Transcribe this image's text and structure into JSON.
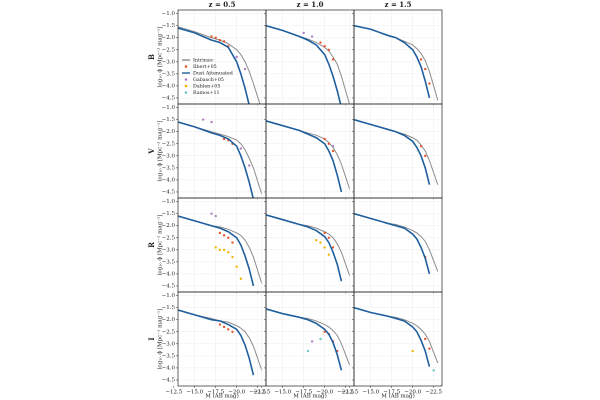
{
  "chart_data": {
    "type": "line",
    "col_titles": [
      "z = 0.5",
      "z = 1.0",
      "z = 1.5"
    ],
    "row_labels": [
      "B",
      "V",
      "R",
      "I"
    ],
    "ylabel": "log₁₀ ϕ [Mpc⁻³ mag⁻¹]",
    "xlabel": "M (AB mag)",
    "xlim": [
      -13,
      -23.5
    ],
    "ylim": [
      -4.75,
      -0.85
    ],
    "xticks": [
      {
        "value": -12.5,
        "label": "−12.5"
      },
      {
        "value": -15,
        "label": "−15.0"
      },
      {
        "value": -17.5,
        "label": "−17.5"
      },
      {
        "value": -20,
        "label": "−20.0"
      },
      {
        "value": -22.5,
        "label": "−22.5"
      }
    ],
    "yticks": [
      {
        "value": -1,
        "label": "−1.0"
      },
      {
        "value": -1.5,
        "label": "−1.5"
      },
      {
        "value": -2,
        "label": "−2.0"
      },
      {
        "value": -2.5,
        "label": "−2.5"
      },
      {
        "value": -3,
        "label": "−3.0"
      },
      {
        "value": -3.5,
        "label": "−3.5"
      },
      {
        "value": -4,
        "label": "−4.0"
      },
      {
        "value": -4.5,
        "label": "−4.5"
      }
    ],
    "grid": true,
    "x": [
      -13,
      -15,
      -17,
      -18,
      -19,
      -20,
      -20.5,
      -21,
      -21.5,
      -22,
      -23
    ],
    "series": [
      {
        "name": "Intrinsic",
        "type": "line",
        "color": "#8c8c8c",
        "panels": [
          [
            -1.55,
            -1.75,
            -2.0,
            -2.1,
            -2.25,
            -2.5,
            -2.7,
            -3.0,
            -3.4,
            -3.9,
            -5.0
          ],
          [
            -1.5,
            -1.7,
            -1.95,
            -2.05,
            -2.2,
            -2.4,
            -2.55,
            -2.8,
            -3.1,
            -3.6,
            -4.8
          ],
          [
            -1.5,
            -1.65,
            -1.9,
            -2.0,
            -2.15,
            -2.3,
            -2.45,
            -2.65,
            -2.95,
            -3.4,
            -4.6
          ],
          [
            -1.6,
            -1.8,
            -2.0,
            -2.1,
            -2.2,
            -2.35,
            -2.5,
            -2.75,
            -3.1,
            -3.5,
            -4.6
          ],
          [
            -1.55,
            -1.75,
            -1.95,
            -2.05,
            -2.15,
            -2.3,
            -2.45,
            -2.65,
            -2.95,
            -3.35,
            -4.4
          ],
          [
            -1.5,
            -1.7,
            -1.9,
            -2.0,
            -2.1,
            -2.25,
            -2.35,
            -2.55,
            -2.8,
            -3.2,
            -4.2
          ],
          [
            -1.6,
            -1.8,
            -2.0,
            -2.05,
            -2.15,
            -2.3,
            -2.4,
            -2.6,
            -2.9,
            -3.3,
            -4.4
          ],
          [
            -1.55,
            -1.75,
            -1.95,
            -2.0,
            -2.1,
            -2.25,
            -2.35,
            -2.5,
            -2.75,
            -3.1,
            -4.1
          ],
          [
            -1.5,
            -1.7,
            -1.9,
            -1.95,
            -2.05,
            -2.2,
            -2.3,
            -2.45,
            -2.65,
            -3.0,
            -3.9
          ],
          [
            -1.6,
            -1.8,
            -1.95,
            -2.05,
            -2.1,
            -2.25,
            -2.35,
            -2.5,
            -2.75,
            -3.1,
            -4.1
          ],
          [
            -1.55,
            -1.75,
            -1.9,
            -1.95,
            -2.05,
            -2.2,
            -2.3,
            -2.45,
            -2.65,
            -3.0,
            -3.9
          ],
          [
            -1.5,
            -1.7,
            -1.85,
            -1.9,
            -2.0,
            -2.15,
            -2.25,
            -2.4,
            -2.6,
            -2.9,
            -3.8
          ]
        ]
      },
      {
        "name": "Ilbert+05",
        "type": "scatter",
        "color": "#e8542c",
        "panels": [
          {
            "x": [
              -17,
              -17.5,
              -18,
              -18.5,
              -19
            ],
            "y": [
              -1.95,
              -2.0,
              -2.1,
              -2.15,
              -2.35
            ]
          },
          {
            "x": [
              -19.5,
              -20,
              -20.5,
              -21
            ],
            "y": [
              -2.2,
              -2.35,
              -2.5,
              -2.9
            ]
          },
          {
            "x": [
              -21,
              -21.5,
              -22
            ],
            "y": [
              -2.9,
              -3.3,
              -3.9
            ]
          },
          {
            "x": [
              -18.5,
              -19,
              -19.5
            ],
            "y": [
              -2.3,
              -2.35,
              -2.5
            ]
          },
          {
            "x": [
              -20,
              -20.5,
              -21
            ],
            "y": [
              -2.3,
              -2.5,
              -2.8
            ]
          },
          {
            "x": [
              -21,
              -21.5
            ],
            "y": [
              -2.6,
              -3.0
            ]
          },
          {
            "x": [
              -18,
              -18.5,
              -19,
              -19.5
            ],
            "y": [
              -2.3,
              -2.4,
              -2.5,
              -2.7
            ]
          },
          {
            "x": [
              -20,
              -20.5,
              -21
            ],
            "y": [
              -2.3,
              -2.5,
              -2.9
            ]
          },
          {
            "x": [
              -21.5
            ],
            "y": [
              -3.3
            ]
          },
          {
            "x": [
              -18,
              -18.5,
              -19,
              -19.5
            ],
            "y": [
              -2.2,
              -2.3,
              -2.4,
              -2.5
            ]
          },
          {
            "x": [
              -20,
              -20.5,
              -21,
              -21.5
            ],
            "y": [
              -2.5,
              -2.6,
              -2.9,
              -3.3
            ]
          },
          {
            "x": [
              -21.5,
              -22
            ],
            "y": [
              -2.8,
              -3.2
            ]
          }
        ]
      },
      {
        "name": "Dust Attenuated",
        "type": "line",
        "color": "#1f5f9e",
        "panels": [
          [
            -1.6,
            -1.8,
            -2.1,
            -2.2,
            -2.4,
            -3.0,
            -3.5,
            -4.1,
            -4.8,
            null,
            null
          ],
          [
            -1.5,
            -1.7,
            -1.95,
            -2.1,
            -2.3,
            -2.7,
            -3.1,
            -3.6,
            -4.2,
            -4.9,
            null
          ],
          [
            -1.5,
            -1.65,
            -1.9,
            -2.0,
            -2.2,
            -2.5,
            -2.8,
            -3.2,
            -3.8,
            -4.5,
            null
          ],
          [
            -1.6,
            -1.8,
            -2.05,
            -2.15,
            -2.3,
            -2.6,
            -3.0,
            -3.5,
            -4.1,
            -4.8,
            null
          ],
          [
            -1.55,
            -1.75,
            -1.95,
            -2.1,
            -2.25,
            -2.5,
            -2.8,
            -3.2,
            -3.8,
            -4.5,
            null
          ],
          [
            -1.5,
            -1.7,
            -1.9,
            -2.0,
            -2.15,
            -2.4,
            -2.65,
            -3.0,
            -3.5,
            -4.2,
            null
          ],
          [
            -1.6,
            -1.8,
            -2.0,
            -2.1,
            -2.25,
            -2.5,
            -2.8,
            -3.25,
            -3.8,
            -4.5,
            null
          ],
          [
            -1.55,
            -1.75,
            -1.95,
            -2.05,
            -2.2,
            -2.45,
            -2.7,
            -3.1,
            -3.6,
            -4.3,
            null
          ],
          [
            -1.5,
            -1.7,
            -1.9,
            -2.0,
            -2.1,
            -2.35,
            -2.55,
            -2.9,
            -3.35,
            -4.0,
            null
          ],
          [
            -1.6,
            -1.8,
            -2.0,
            -2.05,
            -2.2,
            -2.4,
            -2.65,
            -3.05,
            -3.6,
            -4.3,
            null
          ],
          [
            -1.55,
            -1.75,
            -1.9,
            -2.0,
            -2.15,
            -2.4,
            -2.6,
            -2.95,
            -3.45,
            -4.1,
            null
          ],
          [
            -1.5,
            -1.7,
            -1.85,
            -1.95,
            -2.05,
            -2.3,
            -2.5,
            -2.85,
            -3.3,
            -3.95,
            null
          ]
        ]
      },
      {
        "name": "Gabasch+05",
        "type": "scatter",
        "color": "#b07cc6",
        "panels": [
          {
            "x": [
              -20,
              -21
            ],
            "y": [
              -2.8,
              -3.3
            ]
          },
          {
            "x": [
              -17.5,
              -18.5
            ],
            "y": [
              -1.8,
              -1.95
            ]
          },
          {
            "x": [],
            "y": []
          },
          {
            "x": [
              -16,
              -17,
              -20.5,
              -21.5
            ],
            "y": [
              -1.5,
              -1.6,
              -2.7,
              -3.4
            ]
          },
          {
            "x": [
              -21
            ],
            "y": [
              -2.6
            ]
          },
          {
            "x": [],
            "y": []
          },
          {
            "x": [
              -17,
              -17.5
            ],
            "y": [
              -1.5,
              -1.6
            ]
          },
          {
            "x": [],
            "y": []
          },
          {
            "x": [],
            "y": []
          },
          {
            "x": [],
            "y": []
          },
          {
            "x": [
              -18.5
            ],
            "y": [
              -2.9
            ]
          },
          {
            "x": [],
            "y": []
          }
        ]
      },
      {
        "name": "Dahlen+05",
        "type": "scatter",
        "color": "#f0b400",
        "panels": [
          {
            "x": [],
            "y": []
          },
          {
            "x": [],
            "y": []
          },
          {
            "x": [],
            "y": []
          },
          {
            "x": [],
            "y": []
          },
          {
            "x": [],
            "y": []
          },
          {
            "x": [],
            "y": []
          },
          {
            "x": [
              -17.5,
              -18,
              -18.5,
              -19,
              -19.5,
              -20,
              -20.5
            ],
            "y": [
              -2.9,
              -3.0,
              -3.0,
              -3.1,
              -3.3,
              -3.7,
              -4.2
            ]
          },
          {
            "x": [
              -19,
              -19.5,
              -20,
              -20.5
            ],
            "y": [
              -2.6,
              -2.7,
              -2.9,
              -3.2
            ]
          },
          {
            "x": [],
            "y": []
          },
          {
            "x": [],
            "y": []
          },
          {
            "x": [],
            "y": []
          },
          {
            "x": [
              -20
            ],
            "y": [
              -3.3
            ]
          }
        ]
      },
      {
        "name": "Ramos+11",
        "type": "scatter",
        "color": "#6ec6c0",
        "panels": [
          {
            "x": [],
            "y": []
          },
          {
            "x": [],
            "y": []
          },
          {
            "x": [],
            "y": []
          },
          {
            "x": [],
            "y": []
          },
          {
            "x": [],
            "y": []
          },
          {
            "x": [],
            "y": []
          },
          {
            "x": [],
            "y": []
          },
          {
            "x": [],
            "y": []
          },
          {
            "x": [],
            "y": []
          },
          {
            "x": [],
            "y": []
          },
          {
            "x": [
              -18,
              -19.5
            ],
            "y": [
              -3.3,
              -2.8
            ]
          },
          {
            "x": [
              -22.5
            ],
            "y": [
              -4.1
            ]
          }
        ]
      }
    ]
  }
}
